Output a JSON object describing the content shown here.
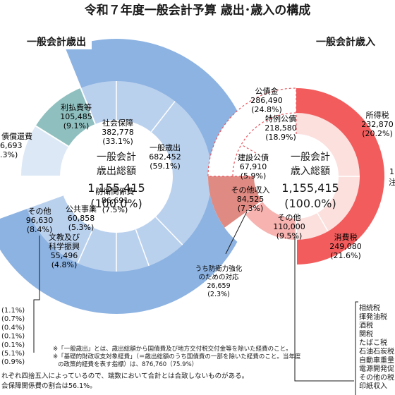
{
  "title": "令和７年度一般会計予算 歳出･歳入の構成",
  "colors": {
    "exp_outer": "#8db3e2",
    "exp_inner": "#bad1ee",
    "exp_teal": "#8fc0bf",
    "exp_pale": "#dce8f6",
    "exp_stroke": "#ffffff",
    "rev_outer": "#f25c5c",
    "rev_inner": "#f6b3b0",
    "rev_pale": "#fbe0de",
    "rev_dark": "#df8a82",
    "rev_dash": "#e8575f",
    "text": "#1a1a1a"
  },
  "chart_data": [
    {
      "type": "pie",
      "title": "一般会計歳出",
      "center": {
        "line1": "一般会計",
        "line2": "歳出総額",
        "value": "1,155,415",
        "pct": "(100.0%)"
      },
      "outer": [
        {
          "name": "一般歳出",
          "value": 682452,
          "pct": "(59.1%)"
        }
      ],
      "inner": [
        {
          "name": "社会保障",
          "value": 382778,
          "pct": "(33.1%)"
        },
        {
          "name": "防衛関係費",
          "value": 86691,
          "pct": "(7.5%)"
        },
        {
          "name": "公共事業",
          "value": 60858,
          "pct": "(5.3%)"
        },
        {
          "name": "文教及び科学振興",
          "value": 55496,
          "pct": "(4.8%)"
        },
        {
          "name": "その他",
          "value": 96630,
          "pct": "(8.4%)"
        },
        {
          "name": "利払費等",
          "value": 105485,
          "pct": "(9.1%)"
        },
        {
          "name": "債償還費",
          "value": "6,693",
          "pct": ".3%)"
        }
      ],
      "left_list": [
        "(1.1%)",
        "(0.7%)",
        "(0.4%)",
        "(0.1%)",
        "(0.1%)",
        "(5.1%)",
        "(0.9%)"
      ],
      "notes": [
        "※「一般歳出」とは、歳出総額から国債費及び地方交付税交付金等を除いた経費のこと。",
        "※「基礎的財政収支対象経費」（＝歳出総額のうち国債費の一部を除いた経費のこと。当年度",
        "の政策的経費を表す指標）は、876,760（75.9%）",
        "れぞれ四捨五入によっているので、端数において合計とは合致しないものがある。",
        "会保障関係費の割合は56.1%。"
      ]
    },
    {
      "type": "pie",
      "title": "一般会計歳入",
      "center": {
        "line1": "一般会計",
        "line2": "歳入総額",
        "value": "1,155,415",
        "pct": "(100.0%)"
      },
      "segments": [
        {
          "name": "公債金",
          "value": 286490,
          "pct": "(24.8%)"
        },
        {
          "name": "特例公債",
          "value": 218580,
          "pct": "(18.9%)"
        },
        {
          "name": "建設公債",
          "value": 67910,
          "pct": "(5.9%)"
        },
        {
          "name": "その他収入",
          "value": 84525,
          "pct": "(7.3%)"
        },
        {
          "name": "その他",
          "value": 110000,
          "pct": "(9.5%)"
        },
        {
          "name": "消費税",
          "value": 249080,
          "pct": "(21.6%)"
        },
        {
          "name": "所得税",
          "value": "232,870",
          "pct": "(20.2%)"
        }
      ],
      "callout": {
        "line1": "うち防衛力強化",
        "line2": "のための対応",
        "value": "26,659",
        "pct": "(2.3%)"
      },
      "right_list": [
        "相続税",
        "揮発油税",
        "酒税",
        "関税",
        "たばこ税",
        "石油石炭税",
        "自動車重量",
        "電源開発促",
        "その他の税",
        "印紙収入"
      ],
      "cut_labels": [
        "1",
        "注"
      ]
    }
  ]
}
